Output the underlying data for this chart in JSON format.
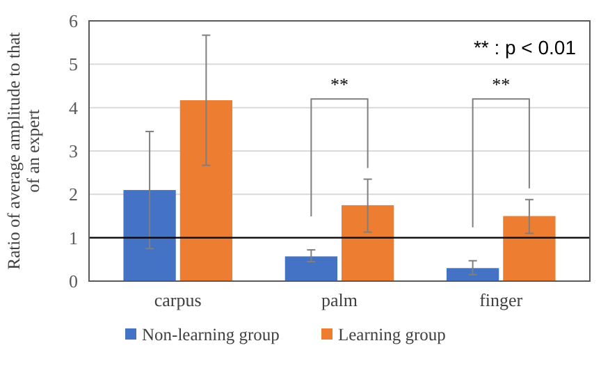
{
  "chart_data": {
    "type": "bar",
    "ylabel": "Ratio of average amplitude to that of an expert",
    "categories": [
      "carpus",
      "palm",
      "finger"
    ],
    "series": [
      {
        "name": "Non-learning group",
        "color": "#4472c4",
        "values": [
          2.1,
          0.57,
          0.3
        ],
        "errors": [
          [
            0.75,
            3.45
          ],
          [
            0.45,
            0.72
          ],
          [
            0.15,
            0.47
          ]
        ]
      },
      {
        "name": "Learning group",
        "color": "#ed7d31",
        "values": [
          4.17,
          1.75,
          1.5
        ],
        "errors": [
          [
            2.67,
            5.67
          ],
          [
            1.13,
            2.35
          ],
          [
            1.1,
            1.88
          ]
        ]
      }
    ],
    "ylim": [
      0,
      6
    ],
    "yticks": [
      0,
      1,
      2,
      3,
      4,
      5,
      6
    ],
    "grid": "y",
    "legend": "bottom",
    "ref_lines": [
      {
        "axis": "y",
        "value": 1,
        "color": "#000000"
      }
    ],
    "annotations": [
      "** : p < 0.01",
      "**",
      "**"
    ]
  }
}
